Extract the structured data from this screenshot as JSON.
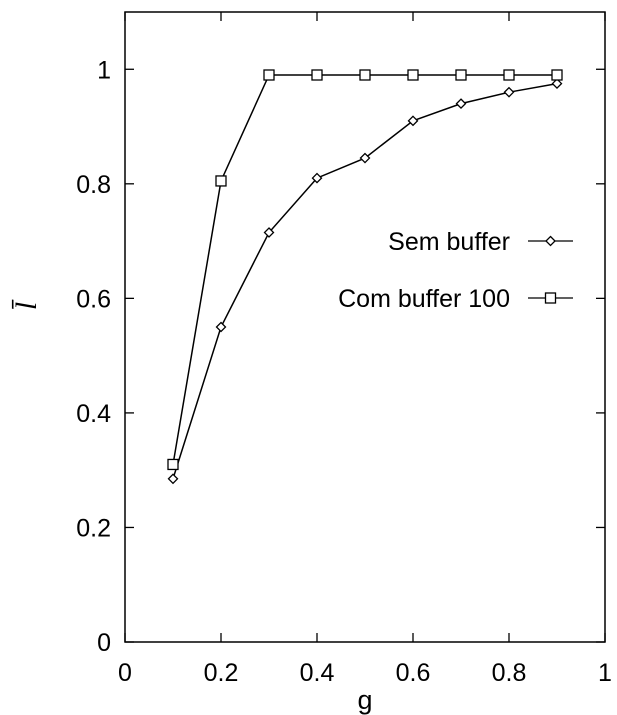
{
  "chart_data": {
    "type": "line",
    "xlabel": "g",
    "ylabel": "l̄",
    "xlim": [
      0,
      1
    ],
    "ylim": [
      0,
      1.1
    ],
    "xticks": [
      "0",
      "0.2",
      "0.4",
      "0.6",
      "0.8",
      "1"
    ],
    "xtick_values": [
      0,
      0.2,
      0.4,
      0.6,
      0.8,
      1
    ],
    "yticks": [
      "0",
      "0.2",
      "0.4",
      "0.6",
      "0.8",
      "1"
    ],
    "ytick_values": [
      0,
      0.2,
      0.4,
      0.6,
      0.8,
      1
    ],
    "grid": false,
    "legend_position": "right",
    "series": [
      {
        "name": "Sem buffer",
        "marker": "diamond",
        "color": "#000000",
        "x": [
          0.1,
          0.2,
          0.3,
          0.4,
          0.5,
          0.6,
          0.7,
          0.8,
          0.9
        ],
        "y": [
          0.285,
          0.55,
          0.715,
          0.81,
          0.845,
          0.91,
          0.94,
          0.96,
          0.975
        ]
      },
      {
        "name": "Com buffer 100",
        "marker": "square",
        "color": "#000000",
        "x": [
          0.1,
          0.2,
          0.3,
          0.4,
          0.5,
          0.6,
          0.7,
          0.8,
          0.9
        ],
        "y": [
          0.31,
          0.805,
          0.99,
          0.99,
          0.99,
          0.99,
          0.99,
          0.99,
          0.99
        ]
      }
    ]
  }
}
